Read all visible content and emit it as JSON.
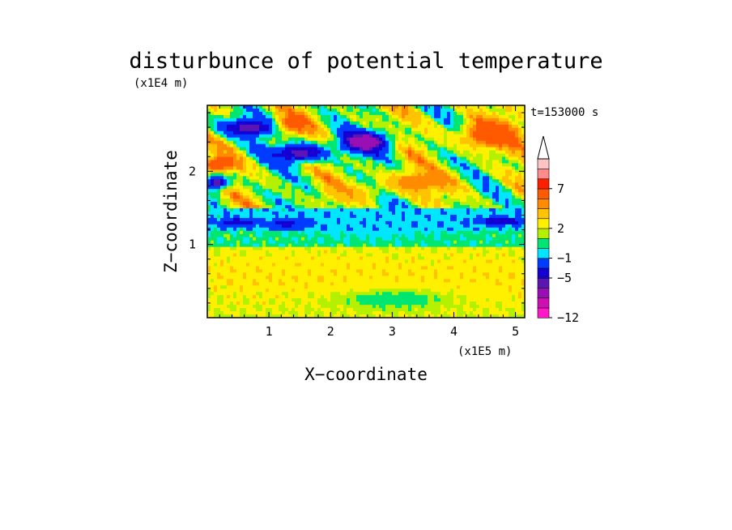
{
  "chart_data": {
    "type": "heatmap",
    "title": "disturbunce of potential temperature",
    "time_label": "t=153000 s",
    "xlabel": "X−coordinate",
    "ylabel": "Z−coordinate",
    "x_unit": "(x1E5 m)",
    "y_unit": "(x1E4 m)",
    "xlim": [
      0,
      5.15
    ],
    "ylim": [
      0,
      2.9
    ],
    "x_ticks": [
      1,
      2,
      3,
      4,
      5
    ],
    "y_ticks": [
      1,
      2
    ],
    "x_tick_labels": [
      "1",
      "2",
      "3",
      "4",
      "5"
    ],
    "y_tick_labels": [
      "1",
      "2"
    ],
    "grid": false,
    "colorbar": {
      "levels": [
        -12,
        -10,
        -8,
        -6,
        -5,
        -3,
        -1,
        0,
        1,
        2,
        3,
        4,
        5,
        7,
        9,
        11
      ],
      "colors": [
        "#ff17c8",
        "#cc10b4",
        "#9a0fb4",
        "#5a16b4",
        "#1400d2",
        "#003cff",
        "#00e6ff",
        "#00e671",
        "#b4f000",
        "#fff000",
        "#ffc300",
        "#ff8c00",
        "#ff5a00",
        "#ff1e00",
        "#ff8c8c",
        "#ffc3c3"
      ],
      "tick_labels": [
        "−12",
        "−5",
        "−1",
        "2",
        "7"
      ],
      "tick_values": [
        -12,
        -5,
        -1,
        2,
        7
      ]
    },
    "features": [
      {
        "x": 2.55,
        "z": 2.4,
        "value": -8,
        "rx": 0.4,
        "rz": 0.15
      },
      {
        "x": 0.7,
        "z": 2.6,
        "value": -6,
        "rx": 0.5,
        "rz": 0.12
      },
      {
        "x": 1.5,
        "z": 2.25,
        "value": -6,
        "rx": 0.45,
        "rz": 0.13
      },
      {
        "x": 0.15,
        "z": 1.85,
        "value": -6,
        "rx": 0.2,
        "rz": 0.1
      },
      {
        "x": 0.5,
        "z": 1.3,
        "value": -5,
        "rx": 0.3,
        "rz": 0.05
      },
      {
        "x": 1.3,
        "z": 1.28,
        "value": -5,
        "rx": 0.3,
        "rz": 0.06
      },
      {
        "x": 4.75,
        "z": 1.32,
        "value": -5,
        "rx": 0.4,
        "rz": 0.05
      },
      {
        "x": 2.7,
        "z": 1.3,
        "value": -1,
        "rx": 1.2,
        "rz": 0.2
      },
      {
        "x": 0.2,
        "z": 2.1,
        "value": 7,
        "rx": 0.3,
        "rz": 0.1
      },
      {
        "x": 4.6,
        "z": 2.5,
        "value": 7,
        "rx": 0.5,
        "rz": 0.2
      },
      {
        "x": 1.4,
        "z": 2.65,
        "value": 6,
        "rx": 0.3,
        "rz": 0.15
      },
      {
        "x": 3.4,
        "z": 1.85,
        "value": 5,
        "rx": 0.6,
        "rz": 0.15
      },
      {
        "x": 2.3,
        "z": 1.7,
        "value": 4,
        "rx": 0.4,
        "rz": 0.12
      },
      {
        "x": 1.0,
        "z": 0.6,
        "value": 3,
        "rx": 0.8,
        "rz": 0.2
      },
      {
        "x": 2.5,
        "z": 0.55,
        "value": 3,
        "rx": 0.9,
        "rz": 0.25
      },
      {
        "x": 4.5,
        "z": 0.5,
        "value": 3,
        "rx": 0.7,
        "rz": 0.25
      },
      {
        "x": 3.0,
        "z": 0.25,
        "value": 0,
        "rx": 0.9,
        "rz": 0.12
      }
    ]
  }
}
